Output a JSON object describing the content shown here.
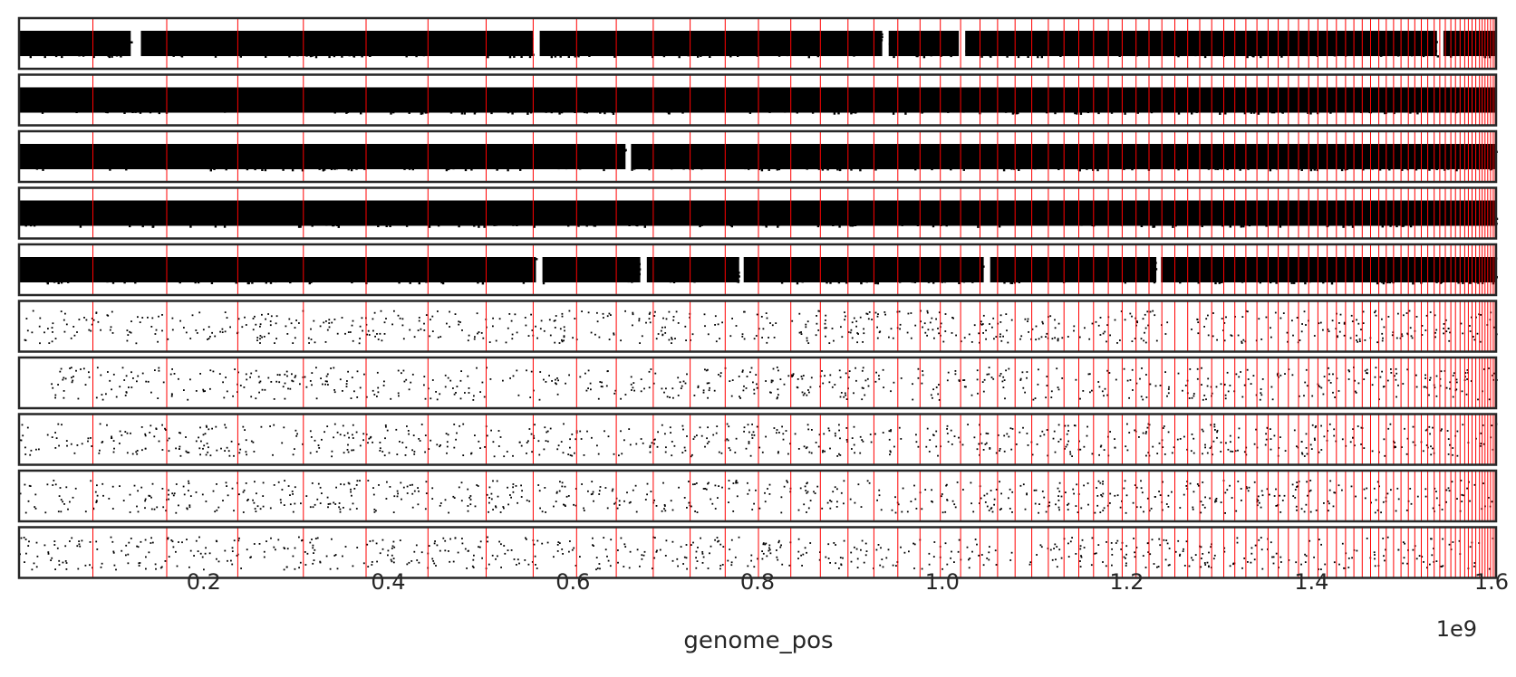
{
  "chart_data": {
    "type": "scatter",
    "xlabel": "genome_pos",
    "offset_text": "1e9",
    "xlim": [
      0,
      1600000000
    ],
    "xticks": [
      200000000,
      400000000,
      600000000,
      800000000,
      1000000000,
      1200000000,
      1400000000,
      1600000000
    ],
    "xtick_labels": [
      "0.2",
      "0.4",
      "0.6",
      "0.8",
      "1.0",
      "1.2",
      "1.4",
      "1.6"
    ],
    "rows": [
      {
        "density": "dense",
        "point_count": 1400,
        "gaps": [
          [
            121000000,
            132000000
          ],
          [
            557000000,
            564000000
          ],
          [
            935000000,
            942000000
          ],
          [
            1018000000,
            1025000000
          ],
          [
            1536000000,
            1543000000
          ]
        ]
      },
      {
        "density": "dense",
        "point_count": 1400,
        "gaps": []
      },
      {
        "density": "dense",
        "point_count": 1400,
        "gaps": [
          [
            657000000,
            663000000
          ]
        ]
      },
      {
        "density": "dense",
        "point_count": 1400,
        "gaps": []
      },
      {
        "density": "dense",
        "point_count": 1400,
        "gaps": [
          [
            560000000,
            567000000
          ],
          [
            673000000,
            680000000
          ],
          [
            780000000,
            785000000
          ],
          [
            1045000000,
            1052000000
          ],
          [
            1232000000,
            1237000000
          ]
        ]
      },
      {
        "density": "sparse",
        "point_count": 700,
        "gaps": []
      },
      {
        "density": "sparse",
        "point_count": 650,
        "gaps": [
          [
            0,
            30000000
          ]
        ]
      },
      {
        "density": "sparse",
        "point_count": 700,
        "gaps": []
      },
      {
        "density": "sparse",
        "point_count": 700,
        "gaps": []
      },
      {
        "density": "sparse",
        "point_count": 680,
        "gaps": []
      }
    ],
    "boundary_positions": [
      80000000,
      160000000,
      237000000,
      308000000,
      376000000,
      443000000,
      506000000,
      557000000,
      604000000,
      647000000,
      687000000,
      727000000,
      765000000,
      801000000,
      836000000,
      868000000,
      898000000,
      926000000,
      952000000,
      976000000,
      998000000,
      1020000000,
      1041000000,
      1060000000,
      1079000000,
      1097000000,
      1115000000,
      1132000000,
      1148000000,
      1164000000,
      1180000000,
      1195000000,
      1210000000,
      1224000000,
      1238000000,
      1252000000,
      1266000000,
      1279000000,
      1292000000,
      1305000000,
      1317000000,
      1329000000,
      1341000000,
      1353000000,
      1364000000,
      1375000000,
      1386000000,
      1397000000,
      1407000000,
      1417000000,
      1427000000,
      1437000000,
      1446000000,
      1455000000,
      1464000000,
      1473000000,
      1481000000,
      1489000000,
      1497000000,
      1505000000,
      1512000000,
      1519000000,
      1526000000,
      1533000000,
      1539000000,
      1545000000,
      1551000000,
      1556000000,
      1561000000,
      1566000000,
      1570000000,
      1574000000,
      1578000000,
      1582000000,
      1585000000,
      1588000000,
      1591000000,
      1594000000,
      1597000000,
      1599000000
    ],
    "colors": {
      "points": "#000000",
      "boundaries": "#ff0000",
      "frame": "#262626",
      "background": "#ffffff"
    },
    "grid": false,
    "legend": "none"
  }
}
